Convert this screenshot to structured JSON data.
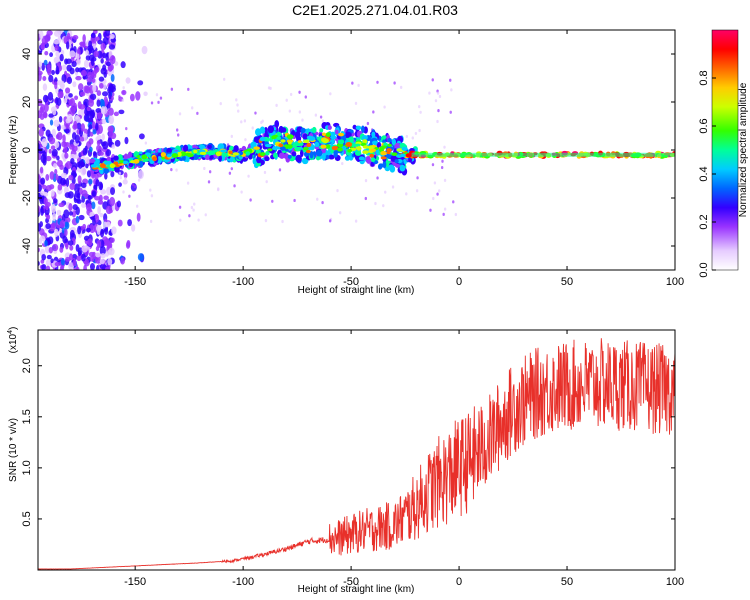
{
  "title": "C2E1.2025.271.04.01.R03",
  "colors": {
    "snr_line": "#e8302a",
    "colormap": [
      "#ffffff",
      "#e6ccff",
      "#9933ff",
      "#3300ff",
      "#0066ff",
      "#00ccff",
      "#00ff99",
      "#33ff00",
      "#ccff00",
      "#ffcc00",
      "#ff6600",
      "#ff0000",
      "#ff0066"
    ]
  },
  "chart_data": [
    {
      "type": "heatmap",
      "title": "",
      "xlabel": "Height of straight line (km)",
      "ylabel": "Frequency (Hz)",
      "xlim": [
        -195,
        100
      ],
      "ylim": [
        -50,
        50
      ],
      "x_ticks": [
        "-150",
        "-100",
        "-50",
        "0",
        "50",
        "100"
      ],
      "y_ticks": [
        "-40",
        "-20",
        "0",
        "20",
        "40"
      ],
      "colorbar": {
        "label": "Normalized spectral amplitude",
        "range": [
          0,
          1
        ],
        "ticks": [
          "0.0",
          "0.2",
          "0.4",
          "0.6",
          "0.8"
        ]
      },
      "ridge": {
        "x": [
          -170,
          -160,
          -150,
          -140,
          -130,
          -120,
          -110,
          -100,
          -90,
          -85,
          -80,
          -70,
          -60,
          -50,
          -40,
          -30,
          -25,
          -20,
          0,
          50,
          100
        ],
        "y": [
          -7,
          -6,
          -4,
          -3,
          -2,
          -1,
          -1,
          -2,
          2,
          4,
          3,
          2,
          4,
          3,
          1,
          -2,
          -2,
          -2,
          -2,
          -2,
          -2
        ]
      }
    },
    {
      "type": "line",
      "title": "",
      "xlabel": "Height of straight line (km)",
      "ylabel": "SNR (10 * v/v)",
      "y_multiplier": "(x10",
      "y_exponent": "4",
      "y_multiplier_close": ")",
      "xlim": [
        -195,
        100
      ],
      "ylim": [
        0,
        2.35
      ],
      "x_ticks": [
        "-150",
        "-100",
        "-50",
        "0",
        "50",
        "100"
      ],
      "y_ticks": [
        "0.5",
        "1.0",
        "1.5",
        "2.0"
      ],
      "series": [
        {
          "x": [
            -195,
            -180,
            -160,
            -140,
            -120,
            -105,
            -95,
            -85,
            -78,
            -70,
            -60,
            -55,
            -50,
            -45,
            -40,
            -35,
            -30,
            -25,
            -20,
            -15,
            -10,
            -5,
            0,
            5,
            10,
            15,
            20,
            25,
            30,
            35,
            40,
            50,
            60,
            70,
            80,
            90,
            95,
            100
          ],
          "values": [
            0.01,
            0.01,
            0.03,
            0.05,
            0.07,
            0.09,
            0.13,
            0.18,
            0.22,
            0.28,
            0.3,
            0.32,
            0.35,
            0.38,
            0.4,
            0.42,
            0.44,
            0.52,
            0.62,
            0.75,
            0.85,
            0.92,
            1.0,
            1.07,
            1.18,
            1.3,
            1.45,
            1.58,
            1.65,
            1.72,
            1.76,
            1.8,
            1.82,
            1.82,
            1.8,
            1.78,
            1.76,
            1.78
          ]
        }
      ]
    }
  ]
}
